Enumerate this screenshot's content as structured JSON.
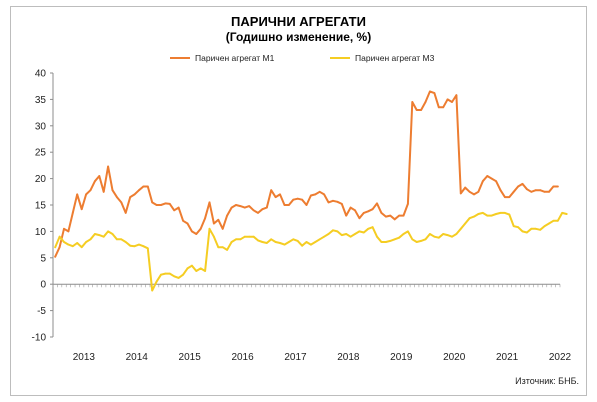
{
  "chart_data": {
    "type": "line",
    "title": "ПАРИЧНИ АГРЕГАТИ",
    "subtitle": "(Годишно изменение, %)",
    "source": "Източник: БНБ.",
    "ylim": [
      -10,
      40
    ],
    "yticks": [
      "-10",
      "-5",
      "0",
      "5",
      "10",
      "15",
      "20",
      "25",
      "30",
      "35",
      "40"
    ],
    "year_labels": [
      "2013",
      "2014",
      "2015",
      "2016",
      "2017",
      "2018",
      "2019",
      "2020",
      "2021",
      "2022"
    ],
    "x_start": "2012-12",
    "legend_position": "top-center",
    "grid": false,
    "series": [
      {
        "name": "Паричен агрегат М1",
        "color": "#ed7d31",
        "values": [
          5.2,
          7.0,
          10.5,
          10.0,
          13.5,
          17.0,
          14.2,
          17.0,
          17.8,
          19.5,
          20.5,
          17.5,
          22.3,
          17.8,
          16.5,
          15.5,
          13.5,
          16.5,
          17.0,
          17.8,
          18.5,
          18.5,
          15.5,
          15.0,
          15.0,
          15.3,
          15.2,
          14.0,
          14.5,
          12.0,
          11.5,
          10.0,
          9.5,
          10.5,
          12.5,
          15.5,
          11.5,
          12.2,
          10.5,
          13.0,
          14.5,
          15.0,
          14.8,
          14.5,
          14.8,
          14.0,
          13.5,
          14.2,
          14.5,
          17.8,
          16.5,
          17.0,
          15.0,
          15.0,
          16.0,
          16.2,
          16.0,
          15.0,
          16.8,
          17.0,
          17.5,
          17.0,
          15.5,
          15.8,
          15.6,
          15.2,
          13.0,
          14.5,
          14.0,
          12.5,
          13.5,
          13.8,
          14.2,
          15.3,
          13.5,
          12.8,
          13.0,
          12.3,
          13.0,
          13.0,
          15.2,
          34.5,
          33.0,
          33.0,
          34.5,
          36.5,
          36.2,
          33.5,
          33.5,
          35.0,
          34.5,
          35.8,
          17.2,
          18.3,
          17.5,
          17.0,
          17.5,
          19.5,
          20.5,
          20.0,
          19.5,
          17.8,
          16.5,
          16.5,
          17.5,
          18.5,
          19.0,
          18.0,
          17.5,
          17.8,
          17.8,
          17.5,
          17.5,
          18.5,
          18.5
        ]
      },
      {
        "name": "Паричен агрегат М3",
        "color": "#f5cd23",
        "values": [
          7.0,
          9.0,
          8.0,
          7.5,
          7.2,
          7.8,
          7.0,
          8.0,
          8.5,
          9.5,
          9.3,
          9.0,
          10.0,
          9.5,
          8.5,
          8.5,
          8.0,
          7.3,
          7.2,
          7.5,
          7.2,
          6.8,
          -1.2,
          0.5,
          1.8,
          2.0,
          2.0,
          1.5,
          1.2,
          1.8,
          3.0,
          3.5,
          2.5,
          3.0,
          2.5,
          10.5,
          9.0,
          7.0,
          7.0,
          6.5,
          8.0,
          8.5,
          8.5,
          9.0,
          9.0,
          9.0,
          8.3,
          8.0,
          7.8,
          8.5,
          8.0,
          7.8,
          7.5,
          8.0,
          8.5,
          8.2,
          7.3,
          8.0,
          7.5,
          8.0,
          8.5,
          9.0,
          9.5,
          10.2,
          10.0,
          9.3,
          9.5,
          9.0,
          9.5,
          10.0,
          9.8,
          10.5,
          10.8,
          9.0,
          8.0,
          8.0,
          8.2,
          8.5,
          8.8,
          9.5,
          10.0,
          8.5,
          8.0,
          8.2,
          8.5,
          9.5,
          9.0,
          8.8,
          9.5,
          9.3,
          9.0,
          9.5,
          10.5,
          11.5,
          12.5,
          12.8,
          13.3,
          13.5,
          13.0,
          13.0,
          13.3,
          13.5,
          13.5,
          13.2,
          11.0,
          10.8,
          10.0,
          9.8,
          10.5,
          10.5,
          10.3,
          11.0,
          11.5,
          12.0,
          12.0,
          13.5,
          13.3
        ]
      }
    ]
  }
}
